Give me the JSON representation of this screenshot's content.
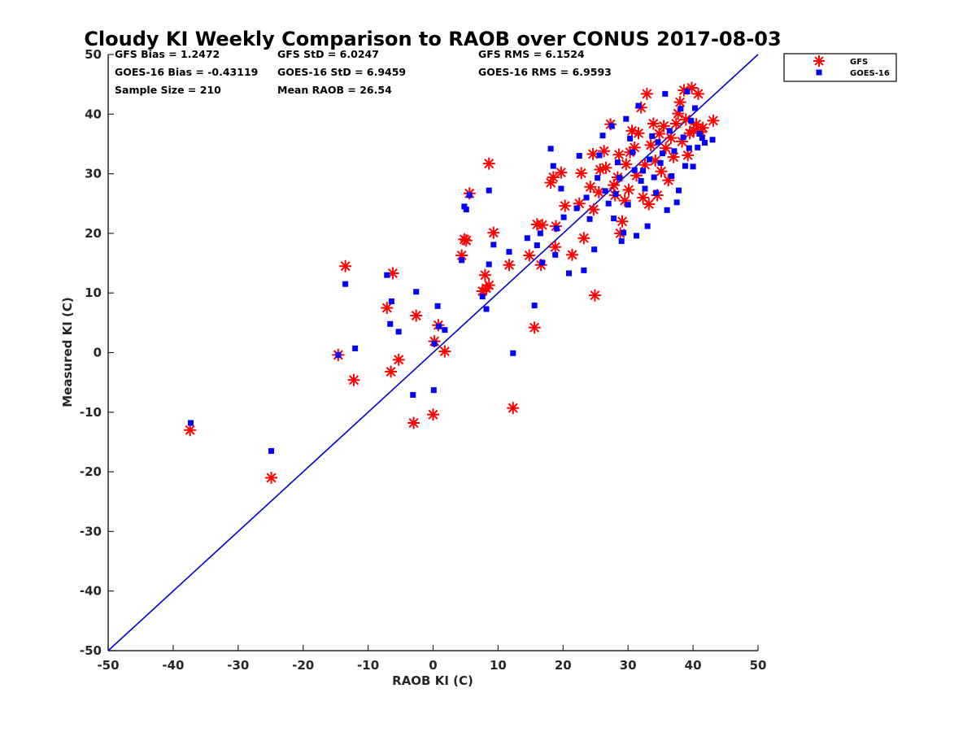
{
  "chart_data": {
    "type": "scatter",
    "title": "Cloudy KI Weekly Comparison to RAOB over CONUS 2017-08-03",
    "xlabel": "RAOB KI (C)",
    "ylabel": "Measured KI (C)",
    "xlim": [
      -50,
      50
    ],
    "ylim": [
      -50,
      50
    ],
    "xticks": [
      "-50",
      "-40",
      "-30",
      "-20",
      "-10",
      "0",
      "10",
      "20",
      "30",
      "40",
      "50"
    ],
    "yticks": [
      "-50",
      "-40",
      "-30",
      "-20",
      "-10",
      "0",
      "10",
      "20",
      "30",
      "40",
      "50"
    ],
    "grid": false,
    "legend_position": "top-right-outside",
    "stats": [
      "GFS Bias = 1.2472",
      "GFS StD = 6.0247",
      "GFS RMS = 6.1524",
      "GOES-16 Bias = -0.43119",
      "GOES-16 StD = 6.9459",
      "GOES-16 RMS = 6.9593",
      "Sample Size = 210",
      "Mean RAOB = 26.54"
    ],
    "reference_line": {
      "x": [
        -50,
        50
      ],
      "y": [
        -50,
        50
      ],
      "color": "#0000cc"
    },
    "series": [
      {
        "name": "GFS",
        "marker": "asterisk",
        "color": "#ff0000",
        "points": [
          [
            -37.4,
            -13.0
          ],
          [
            -24.9,
            -21.0
          ],
          [
            -14.6,
            -0.4
          ],
          [
            -13.5,
            14.5
          ],
          [
            -12.2,
            -4.6
          ],
          [
            -7.1,
            7.5
          ],
          [
            -6.5,
            -3.2
          ],
          [
            -6.2,
            13.3
          ],
          [
            -5.3,
            -1.2
          ],
          [
            -2.6,
            6.2
          ],
          [
            -3.0,
            -11.8
          ],
          [
            0.0,
            -10.4
          ],
          [
            0.2,
            1.9
          ],
          [
            0.8,
            4.6
          ],
          [
            1.8,
            0.2
          ],
          [
            4.4,
            16.3
          ],
          [
            4.8,
            19.0
          ],
          [
            5.1,
            18.8
          ],
          [
            5.6,
            26.7
          ],
          [
            7.6,
            10.3
          ],
          [
            8.0,
            13.0
          ],
          [
            8.2,
            10.8
          ],
          [
            8.6,
            11.3
          ],
          [
            8.6,
            31.7
          ],
          [
            9.3,
            20.1
          ],
          [
            11.7,
            14.7
          ],
          [
            12.3,
            -9.3
          ],
          [
            14.8,
            16.3
          ],
          [
            15.6,
            4.2
          ],
          [
            16.0,
            21.5
          ],
          [
            16.8,
            21.4
          ],
          [
            16.6,
            14.7
          ],
          [
            18.1,
            28.5
          ],
          [
            18.5,
            29.4
          ],
          [
            18.8,
            17.7
          ],
          [
            18.9,
            21.2
          ],
          [
            19.7,
            30.2
          ],
          [
            20.3,
            24.6
          ],
          [
            21.4,
            16.4
          ],
          [
            22.5,
            25.0
          ],
          [
            22.8,
            30.1
          ],
          [
            23.2,
            19.2
          ],
          [
            24.2,
            27.8
          ],
          [
            24.6,
            33.3
          ],
          [
            24.9,
            9.6
          ],
          [
            24.7,
            24.0
          ],
          [
            25.5,
            26.9
          ],
          [
            25.7,
            30.7
          ],
          [
            26.3,
            33.8
          ],
          [
            26.6,
            31.0
          ],
          [
            27.3,
            38.3
          ],
          [
            27.8,
            28.1
          ],
          [
            28.0,
            26.4
          ],
          [
            28.4,
            29.4
          ],
          [
            28.6,
            33.2
          ],
          [
            28.8,
            20.0
          ],
          [
            29.1,
            22.0
          ],
          [
            29.5,
            25.5
          ],
          [
            29.7,
            31.6
          ],
          [
            30.1,
            27.3
          ],
          [
            30.3,
            33.6
          ],
          [
            30.6,
            37.2
          ],
          [
            31.0,
            34.4
          ],
          [
            31.3,
            29.7
          ],
          [
            31.6,
            36.8
          ],
          [
            32.0,
            41.1
          ],
          [
            32.3,
            26.0
          ],
          [
            32.6,
            31.5
          ],
          [
            32.9,
            43.4
          ],
          [
            33.2,
            24.9
          ],
          [
            33.5,
            34.8
          ],
          [
            33.9,
            38.4
          ],
          [
            34.2,
            32.2
          ],
          [
            34.5,
            26.4
          ],
          [
            34.8,
            36.7
          ],
          [
            35.1,
            30.4
          ],
          [
            35.5,
            38.0
          ],
          [
            35.8,
            34.3
          ],
          [
            36.2,
            28.9
          ],
          [
            36.6,
            36.0
          ],
          [
            37.0,
            32.8
          ],
          [
            37.4,
            38.4
          ],
          [
            37.7,
            40.1
          ],
          [
            38.0,
            42.0
          ],
          [
            38.3,
            35.4
          ],
          [
            38.6,
            44.0
          ],
          [
            38.9,
            39.1
          ],
          [
            39.2,
            33.1
          ],
          [
            39.5,
            36.8
          ],
          [
            39.8,
            44.4
          ],
          [
            40.1,
            37.3
          ],
          [
            40.5,
            38.3
          ],
          [
            40.8,
            43.4
          ],
          [
            41.2,
            37.0
          ],
          [
            41.5,
            37.7
          ],
          [
            43.1,
            38.9
          ]
        ]
      },
      {
        "name": "GOES-16",
        "marker": "square",
        "color": "#0000ff",
        "points": [
          [
            -37.3,
            -11.8
          ],
          [
            -24.9,
            -16.5
          ],
          [
            -14.6,
            -0.4
          ],
          [
            -13.5,
            11.5
          ],
          [
            -12.0,
            0.7
          ],
          [
            -7.1,
            13.0
          ],
          [
            -6.6,
            4.8
          ],
          [
            -6.4,
            8.6
          ],
          [
            -5.3,
            3.5
          ],
          [
            -2.6,
            10.2
          ],
          [
            -3.1,
            -7.1
          ],
          [
            0.1,
            -6.3
          ],
          [
            0.2,
            1.5
          ],
          [
            0.7,
            7.8
          ],
          [
            0.9,
            4.4
          ],
          [
            1.8,
            3.8
          ],
          [
            4.4,
            15.5
          ],
          [
            4.8,
            24.5
          ],
          [
            5.1,
            24.0
          ],
          [
            5.6,
            26.4
          ],
          [
            7.6,
            9.4
          ],
          [
            8.2,
            7.3
          ],
          [
            8.6,
            14.8
          ],
          [
            8.6,
            27.2
          ],
          [
            9.3,
            18.1
          ],
          [
            11.7,
            16.9
          ],
          [
            12.3,
            -0.1
          ],
          [
            14.5,
            19.2
          ],
          [
            15.6,
            7.9
          ],
          [
            16.0,
            18.0
          ],
          [
            16.5,
            20.0
          ],
          [
            16.8,
            15.1
          ],
          [
            18.1,
            34.2
          ],
          [
            18.5,
            31.3
          ],
          [
            18.8,
            16.4
          ],
          [
            19.0,
            20.8
          ],
          [
            19.7,
            27.5
          ],
          [
            20.1,
            22.7
          ],
          [
            20.9,
            13.3
          ],
          [
            22.1,
            24.2
          ],
          [
            22.5,
            33.0
          ],
          [
            23.2,
            13.8
          ],
          [
            23.6,
            26.0
          ],
          [
            24.1,
            22.4
          ],
          [
            24.8,
            17.3
          ],
          [
            25.3,
            29.3
          ],
          [
            25.6,
            33.1
          ],
          [
            26.1,
            36.4
          ],
          [
            26.5,
            27.1
          ],
          [
            27.0,
            25.0
          ],
          [
            27.5,
            38.0
          ],
          [
            27.8,
            22.5
          ],
          [
            28.1,
            26.6
          ],
          [
            28.4,
            31.9
          ],
          [
            28.7,
            29.3
          ],
          [
            29.0,
            18.7
          ],
          [
            29.3,
            20.1
          ],
          [
            29.7,
            39.2
          ],
          [
            30.0,
            24.8
          ],
          [
            30.3,
            35.9
          ],
          [
            30.7,
            33.6
          ],
          [
            31.0,
            30.6
          ],
          [
            31.3,
            19.6
          ],
          [
            31.6,
            41.4
          ],
          [
            32.0,
            28.8
          ],
          [
            32.3,
            30.5
          ],
          [
            32.6,
            27.5
          ],
          [
            33.0,
            21.2
          ],
          [
            33.3,
            32.4
          ],
          [
            33.7,
            36.3
          ],
          [
            34.0,
            29.4
          ],
          [
            34.3,
            26.8
          ],
          [
            34.6,
            35.3
          ],
          [
            35.0,
            31.8
          ],
          [
            35.3,
            33.4
          ],
          [
            35.7,
            43.4
          ],
          [
            36.0,
            23.9
          ],
          [
            36.4,
            37.2
          ],
          [
            36.7,
            29.6
          ],
          [
            37.1,
            33.8
          ],
          [
            37.5,
            25.2
          ],
          [
            37.8,
            27.2
          ],
          [
            38.1,
            40.9
          ],
          [
            38.5,
            36.1
          ],
          [
            38.8,
            31.3
          ],
          [
            39.1,
            43.8
          ],
          [
            39.4,
            34.3
          ],
          [
            39.7,
            38.9
          ],
          [
            40.0,
            31.2
          ],
          [
            40.3,
            41.0
          ],
          [
            40.7,
            34.4
          ],
          [
            41.0,
            36.7
          ],
          [
            41.4,
            36.0
          ],
          [
            41.8,
            35.2
          ],
          [
            43.0,
            35.7
          ]
        ]
      }
    ]
  }
}
